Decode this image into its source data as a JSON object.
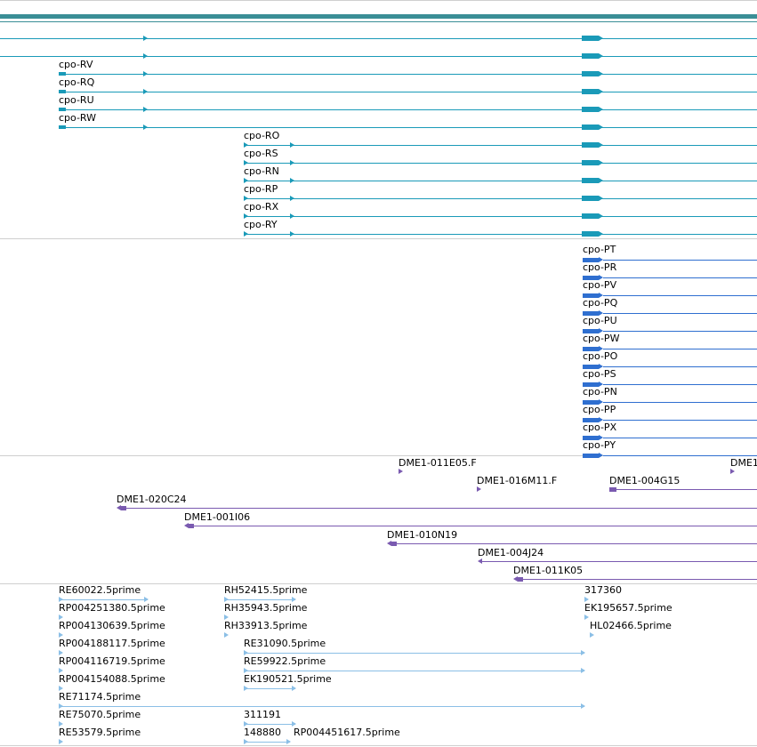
{
  "colors": {
    "top_bar": "#3a8e96",
    "gene_track": "#1a9ab8",
    "protein_track": "#2f6fd0",
    "clone_track": "#7a5ab0",
    "est_track": "#8bbfe6",
    "separator": "#cfcfcf"
  },
  "tracks": {
    "genes": {
      "unlabeled_rows": 2,
      "labels": [
        "cpo-RV",
        "cpo-RQ",
        "cpo-RU",
        "cpo-RW",
        "cpo-RO",
        "cpo-RS",
        "cpo-RN",
        "cpo-RP",
        "cpo-RX",
        "cpo-RY"
      ]
    },
    "proteins": {
      "labels": [
        "cpo-PT",
        "cpo-PR",
        "cpo-PV",
        "cpo-PQ",
        "cpo-PU",
        "cpo-PW",
        "cpo-PO",
        "cpo-PS",
        "cpo-PN",
        "cpo-PP",
        "cpo-PX",
        "cpo-PY"
      ]
    },
    "clones": {
      "labels": [
        "DME1-011E05.F",
        "DME1",
        "DME1-016M11.F",
        "DME1-004G15",
        "DME1-020C24",
        "DME1-001I06",
        "DME1-010N19",
        "DME1-004J24",
        "DME1-011K05"
      ]
    },
    "ests": {
      "labels": [
        "RE60022.5prime",
        "RH52415.5prime",
        "317360",
        "RP004251380.5prime",
        "RH35943.5prime",
        "EK195657.5prime",
        "RP004130639.5prime",
        "RH33913.5prime",
        "HL02466.5prime",
        "RP004188117.5prime",
        "RE31090.5prime",
        "RP004116719.5prime",
        "RE59922.5prime",
        "RP004154088.5prime",
        "EK190521.5prime",
        "RE71174.5prime",
        "RE75070.5prime",
        "311191",
        "RE53579.5prime",
        "148880",
        "RP004451617.5prime"
      ]
    }
  }
}
